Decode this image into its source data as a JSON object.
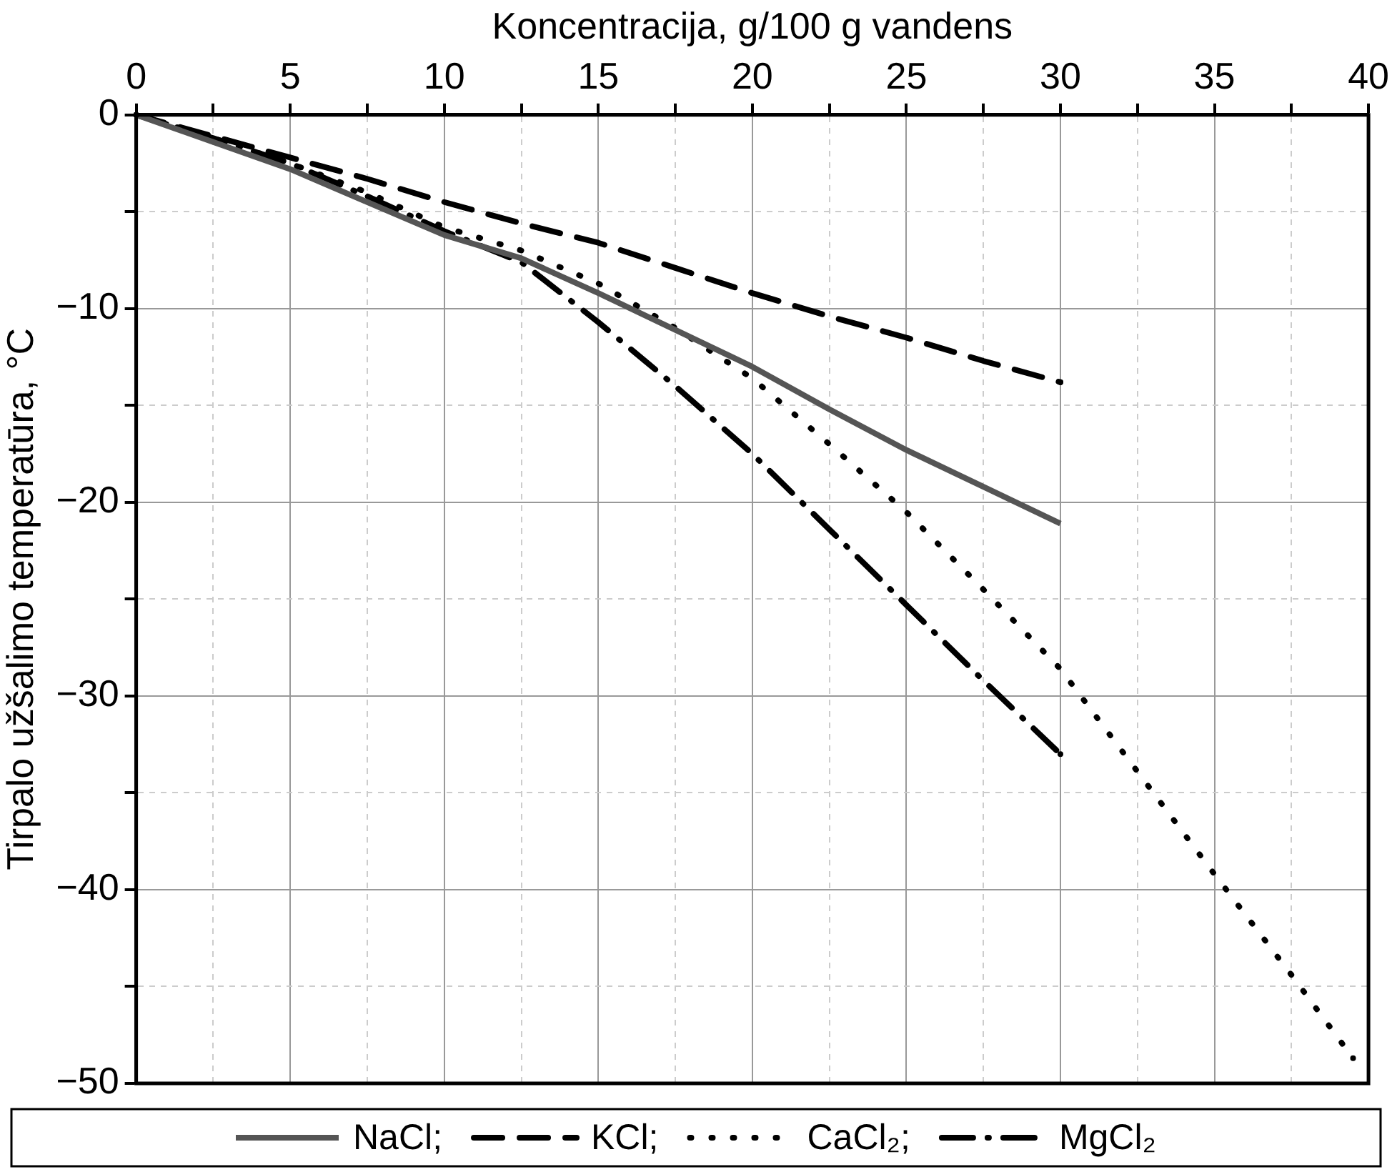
{
  "chart_data": {
    "type": "line",
    "xlabel": "Koncentracija, g/100 g vandens",
    "ylabel": "Tirpalo užšalimo temperatūra, °C",
    "x": [
      0,
      2.5,
      5,
      7.5,
      10,
      12.5,
      15,
      17.5,
      20,
      22.5,
      25,
      27.5,
      30
    ],
    "series": [
      {
        "name": "NaCl;",
        "color": "#555555",
        "line_style": "solid",
        "values": [
          0,
          -1.4,
          -2.8,
          -4.5,
          -6.2,
          -7.4,
          -9.2,
          -11.1,
          -13.0,
          -15.2,
          -17.3,
          -19.2,
          -21.1
        ]
      },
      {
        "name": "KCl;",
        "color": "#000000",
        "line_style": "dashed",
        "values": [
          0,
          -1.1,
          -2.2,
          -3.3,
          -4.5,
          -5.6,
          -6.6,
          -7.9,
          -9.2,
          -10.4,
          -11.5,
          -12.7,
          -13.8
        ]
      },
      {
        "name": "CaCl₂;",
        "color": "#000000",
        "line_style": "dotted",
        "x": [
          0,
          2.5,
          5,
          7.5,
          10,
          12.5,
          15,
          17.5,
          20,
          22.5,
          25,
          27.5,
          30,
          32.5,
          35,
          37.5,
          39.5
        ],
        "values": [
          0,
          -1.2,
          -2.5,
          -4.0,
          -5.8,
          -7.0,
          -8.7,
          -11.0,
          -13.6,
          -17.0,
          -20.5,
          -24.5,
          -28.6,
          -33.9,
          -39.2,
          -44.4,
          -48.7
        ]
      },
      {
        "name": "MgCl₂",
        "color": "#000000",
        "line_style": "dashdot",
        "values": [
          0,
          -1.2,
          -2.5,
          -4.2,
          -6.0,
          -7.6,
          -10.7,
          -14.0,
          -17.5,
          -21.4,
          -25.3,
          -29.2,
          -33.0
        ]
      }
    ],
    "xlim": [
      0,
      40
    ],
    "xticks": [
      0,
      {
        "value": 2.5,
        "label": null
      },
      5,
      {
        "value": 7.5,
        "label": null
      },
      10,
      {
        "value": 12.5,
        "label": null
      },
      15,
      {
        "value": 17.5,
        "label": null
      },
      20,
      {
        "value": 22.5,
        "label": null
      },
      25,
      {
        "value": 27.5,
        "label": null
      },
      30,
      {
        "value": 32.5,
        "label": null
      },
      35,
      {
        "value": 37.5,
        "label": null
      },
      40
    ],
    "ylim": [
      -50,
      0
    ],
    "yticks": [
      {
        "value": -50,
        "label": "−50"
      },
      {
        "value": -45,
        "label": null
      },
      {
        "value": -40,
        "label": "−40"
      },
      {
        "value": -35,
        "label": null
      },
      {
        "value": -30,
        "label": "−30"
      },
      {
        "value": -25,
        "label": null
      },
      {
        "value": -20,
        "label": "−20"
      },
      {
        "value": -15,
        "label": null
      },
      {
        "value": -10,
        "label": "−10"
      },
      {
        "value": -5,
        "label": null
      },
      0
    ],
    "grid": true,
    "legend": "bottom",
    "marker": "none"
  }
}
